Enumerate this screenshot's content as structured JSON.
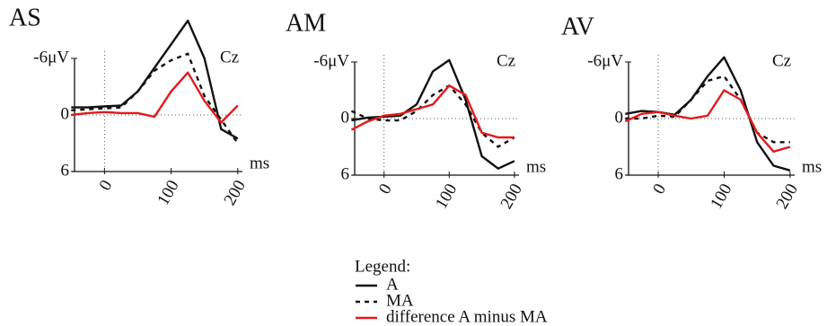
{
  "legend_title": "Legend:",
  "chart_data": [
    {
      "type": "line",
      "title": "AS",
      "annotation": "Cz",
      "xlabel": "ms",
      "x": [
        -50,
        -25,
        0,
        25,
        50,
        75,
        100,
        125,
        150,
        175,
        200
      ],
      "xlim": [
        -45,
        207
      ],
      "ylim": [
        -10.5,
        6
      ],
      "xticks": [
        0,
        100,
        200
      ],
      "yticks": [
        {
          "value": -6,
          "label": "-6μV"
        },
        0,
        6
      ],
      "y_inverted": true,
      "series": [
        {
          "name": "A",
          "color": "#111111",
          "line_style": "solid",
          "values": [
            -0.8,
            -0.8,
            -0.9,
            -1,
            -2.5,
            -5,
            -7.5,
            -10,
            -6,
            1.5,
            2.5
          ]
        },
        {
          "name": "MA",
          "color": "#111111",
          "line_style": "dashed",
          "values": [
            -0.5,
            -0.6,
            -0.7,
            -0.8,
            -2.5,
            -4.7,
            -5.8,
            -6.5,
            -2,
            0.5,
            3
          ]
        },
        {
          "name": "difference A minus MA",
          "color": "#e3191c",
          "line_style": "solid",
          "values": [
            0,
            -0.2,
            -0.3,
            -0.2,
            -0.2,
            0.2,
            -2.5,
            -4.5,
            -1.5,
            0.8,
            -1
          ]
        }
      ]
    },
    {
      "type": "line",
      "title": "AM",
      "annotation": "Cz",
      "xlabel": "ms",
      "x": [
        -50,
        -25,
        0,
        25,
        50,
        75,
        100,
        125,
        150,
        175,
        200
      ],
      "xlim": [
        -45,
        207
      ],
      "ylim": [
        -7,
        6
      ],
      "xticks": [
        0,
        100,
        200
      ],
      "yticks": [
        {
          "value": -6,
          "label": "-6μV"
        },
        0,
        6
      ],
      "y_inverted": true,
      "series": [
        {
          "name": "A",
          "color": "#111111",
          "line_style": "solid",
          "values": [
            0.2,
            -0.1,
            -0.2,
            -0.3,
            -1.5,
            -5,
            -6.2,
            -2,
            4,
            5.3,
            4.5
          ]
        },
        {
          "name": "MA",
          "color": "#111111",
          "line_style": "dashed",
          "values": [
            -0.8,
            0,
            0.2,
            0.2,
            -0.8,
            -2.5,
            -3.5,
            -1.5,
            1.5,
            3,
            2
          ]
        },
        {
          "name": "difference A minus MA",
          "color": "#e3191c",
          "line_style": "solid",
          "values": [
            1.2,
            0.3,
            -0.3,
            -0.5,
            -1,
            -1.5,
            -3.5,
            -2.5,
            1.5,
            2,
            2
          ]
        }
      ]
    },
    {
      "type": "line",
      "title": "AV",
      "annotation": "Cz",
      "xlabel": "ms",
      "x": [
        -50,
        -25,
        0,
        25,
        50,
        75,
        100,
        125,
        150,
        175,
        200
      ],
      "xlim": [
        -45,
        207
      ],
      "ylim": [
        -7,
        6
      ],
      "xticks": [
        0,
        100,
        200
      ],
      "yticks": [
        {
          "value": -6,
          "label": "-6μV"
        },
        0,
        6
      ],
      "y_inverted": true,
      "series": [
        {
          "name": "A",
          "color": "#111111",
          "line_style": "solid",
          "values": [
            -0.5,
            -0.8,
            -0.7,
            -0.4,
            -2,
            -4.5,
            -6.5,
            -3,
            2.5,
            5,
            5.5
          ]
        },
        {
          "name": "MA",
          "color": "#111111",
          "line_style": "dashed",
          "values": [
            0,
            0,
            -0.3,
            -0.2,
            -2,
            -4,
            -4.5,
            -2,
            1.5,
            2.5,
            2.5
          ]
        },
        {
          "name": "difference A minus MA",
          "color": "#e3191c",
          "line_style": "solid",
          "values": [
            0.3,
            -0.5,
            -0.7,
            -0.3,
            0,
            -0.3,
            -3,
            -2,
            1.5,
            3.5,
            3
          ]
        }
      ]
    }
  ]
}
